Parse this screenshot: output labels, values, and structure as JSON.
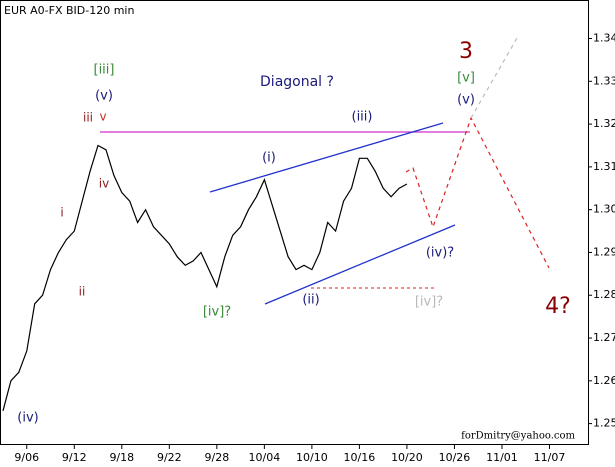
{
  "chart_data": {
    "type": "line",
    "title": "EUR A0-FX BID-120 min",
    "credit": "forDmitry@yahoo.com",
    "color": "#000000",
    "categories": [
      null,
      null,
      null,
      "9/06",
      null,
      null,
      null,
      null,
      null,
      "9/12",
      null,
      null,
      null,
      null,
      null,
      "9/18",
      null,
      null,
      null,
      null,
      null,
      "9/22",
      null,
      null,
      null,
      null,
      null,
      "9/28",
      null,
      null,
      null,
      null,
      null,
      "10/04",
      null,
      null,
      null,
      null,
      null,
      "10/10",
      null,
      null,
      null,
      null,
      null,
      "10/16",
      null,
      null,
      null,
      null,
      null,
      "10/20",
      null,
      null,
      null,
      null,
      null,
      "10/26",
      null,
      null,
      null,
      null,
      null,
      "11/01",
      null,
      null,
      null,
      null,
      null,
      "11/07",
      null,
      null,
      null,
      null,
      null
    ],
    "values": [
      1.253,
      1.26,
      1.262,
      1.267,
      1.278,
      1.28,
      1.286,
      1.29,
      1.293,
      1.295,
      1.302,
      1.309,
      1.315,
      1.314,
      1.308,
      1.304,
      1.302,
      1.297,
      1.3,
      1.296,
      1.294,
      1.292,
      1.289,
      1.287,
      1.288,
      1.29,
      1.286,
      1.282,
      1.289,
      1.294,
      1.296,
      1.3,
      1.303,
      1.307,
      1.301,
      1.295,
      1.289,
      1.286,
      1.287,
      1.286,
      1.29,
      1.297,
      1.295,
      1.302,
      1.305,
      1.312,
      1.312,
      1.309,
      1.305,
      1.303,
      1.305,
      1.306,
      null,
      null,
      null,
      null,
      null,
      null,
      null,
      null,
      null,
      null,
      null,
      null,
      null,
      null,
      null,
      null,
      null,
      null,
      null,
      null,
      null,
      null,
      null
    ],
    "ylim": [
      1.245,
      1.349
    ],
    "yticks": [
      1.25,
      1.26,
      1.27,
      1.28,
      1.29,
      {
        "value": 1.3,
        "label": "1.30"
      },
      1.31,
      1.32,
      1.33,
      1.34
    ],
    "annotations": [
      {
        "text": "[iii]",
        "color": "#3a8a3a"
      },
      {
        "text": "(v)",
        "color": "#1a1a7a"
      },
      {
        "text": "iii",
        "color": "#8b1a1a"
      },
      {
        "text": "v",
        "color": "#c03020"
      },
      {
        "text": "iv",
        "color": "#8b1a1a"
      },
      {
        "text": "i",
        "color": "#8b1a1a"
      },
      {
        "text": "ii",
        "color": "#8b1a1a"
      },
      {
        "text": "(iv)",
        "color": "#1a1a7a"
      },
      {
        "text": "[iv]?",
        "color": "#3a8a3a"
      },
      {
        "text": "(i)",
        "color": "#1a1a7a"
      },
      {
        "text": "(ii)",
        "color": "#1a1a7a"
      },
      {
        "text": "(iii)",
        "color": "#1a1a7a"
      },
      {
        "text": "Diagonal ?",
        "color": "#1a1a7a"
      },
      {
        "text": "3",
        "color": "#8b0000"
      },
      {
        "text": "[v]",
        "color": "#3a8a3a"
      },
      {
        "text": "(v)",
        "color": "#1a1a7a"
      },
      {
        "text": "(iv)?",
        "color": "#1a1a7a"
      },
      {
        "text": "[iv]?",
        "color": "#b8b8b8"
      },
      {
        "text": "4?",
        "color": "#8b0000"
      }
    ]
  }
}
